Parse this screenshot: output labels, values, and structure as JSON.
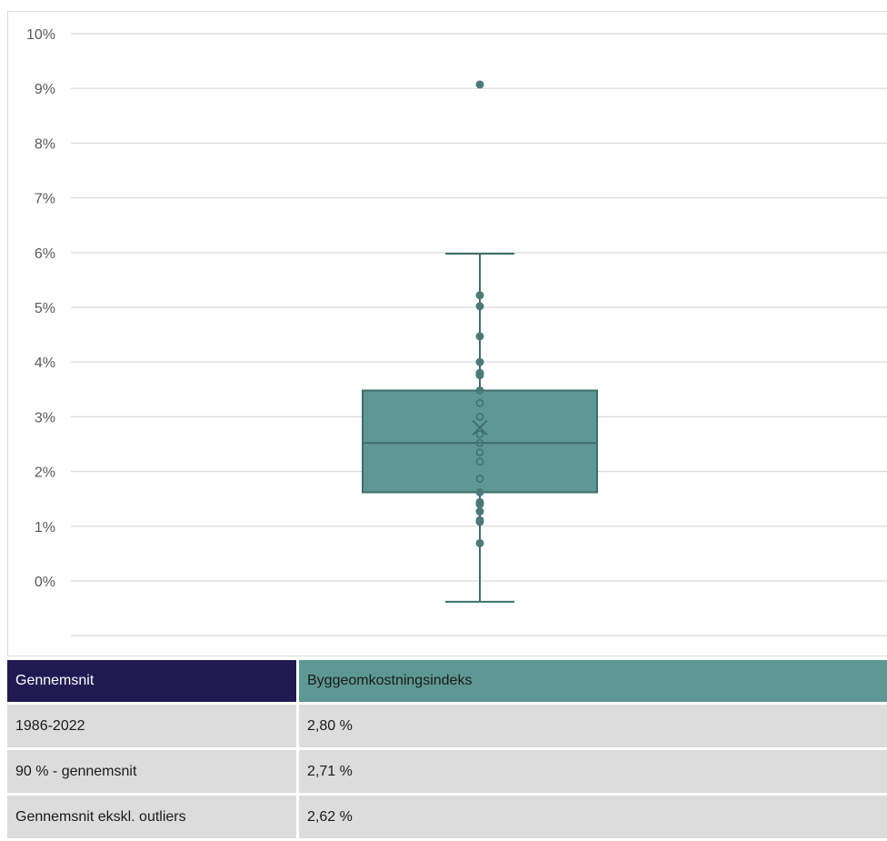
{
  "chart_data": {
    "type": "box",
    "ylim": [
      -1,
      10
    ],
    "yticks": [
      0,
      1,
      2,
      3,
      4,
      5,
      6,
      7,
      8,
      9,
      10
    ],
    "ytick_labels": [
      "0%",
      "1%",
      "2%",
      "3%",
      "4%",
      "5%",
      "6%",
      "7%",
      "8%",
      "9%",
      "10%"
    ],
    "grid": true,
    "box": {
      "whisker_low": -0.38,
      "q1": 1.62,
      "median": 2.52,
      "q3": 3.48,
      "whisker_high": 5.98,
      "mean": 2.8
    },
    "points": [
      0.69,
      1.08,
      1.11,
      1.27,
      1.4,
      1.44,
      1.62,
      1.87,
      2.18,
      2.35,
      2.52,
      2.68,
      3.0,
      3.25,
      3.48,
      3.76,
      3.8,
      4.0,
      4.47,
      5.02,
      5.22
    ],
    "outliers": [
      9.07
    ],
    "colors": {
      "box_fill": "#5e9894",
      "box_edge": "#3e6e6b",
      "point": "#4c7a78",
      "grid": "#d9d9d9",
      "tick_text": "#595959"
    }
  },
  "table": {
    "header": [
      "Gennemsnit",
      "Byggeomkostningsindeks"
    ],
    "rows": [
      [
        "1986-2022",
        "2,80 %"
      ],
      [
        "90 % - gennemsnit",
        "2,71 %"
      ],
      [
        "Gennemsnit ekskl. outliers",
        "2,62 %"
      ]
    ]
  }
}
